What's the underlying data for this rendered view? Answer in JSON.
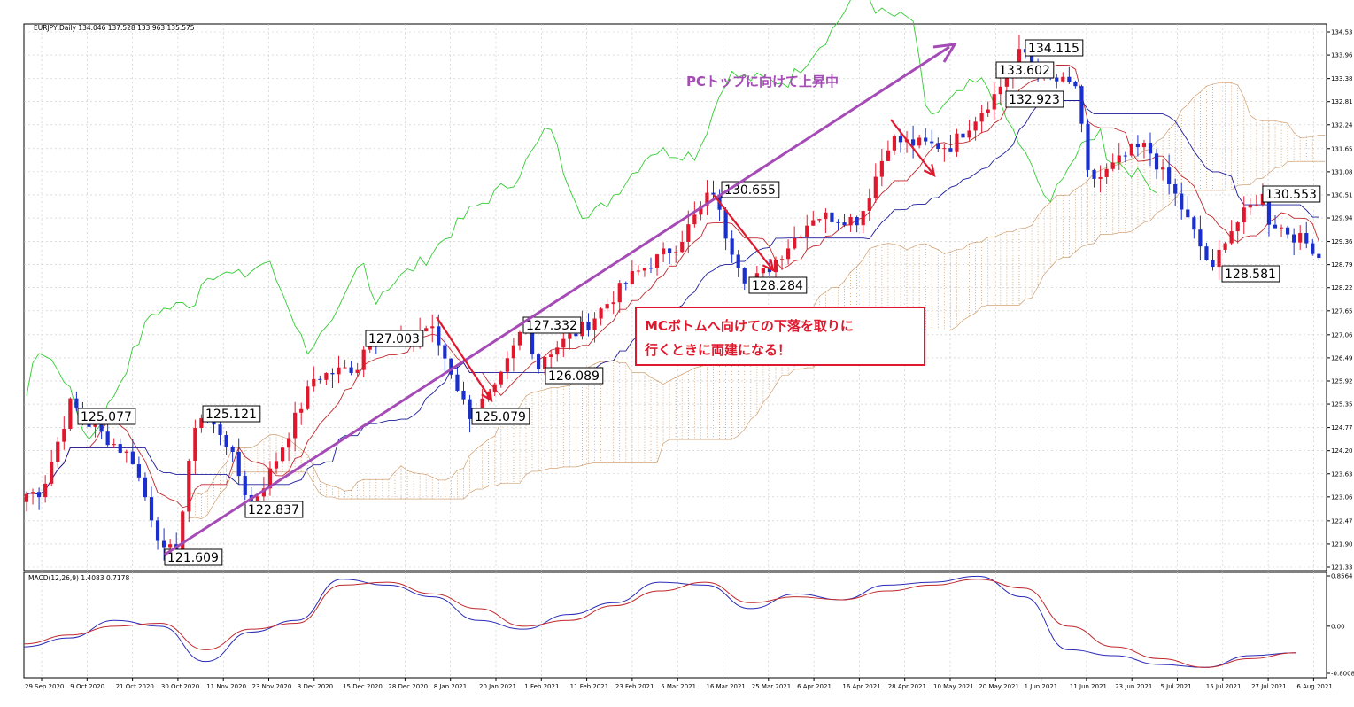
{
  "header": {
    "symbol_info": "EURJPY,Daily  134.046 137.528 133.963 135.575",
    "macd_info": "MACD(12,26,9) 1.4083 0.7178"
  },
  "colors": {
    "bull": "#e0182d",
    "bear": "#1a2fcc",
    "tenkan": "#c0282c",
    "kijun": "#1d1d9a",
    "chikou": "#33cc33",
    "kumo": "#c9915a",
    "macd_main": "#2a2ab8",
    "macd_signal": "#c0282c",
    "anno_purple": "#a54bb6",
    "anno_red": "#e0182d",
    "grid": "#c8c8c8"
  },
  "annotations": {
    "uptrend_text": "PCトップに向けて上昇中",
    "hedge_text_line1": "MCボトムへ向けての下落を取りに",
    "hedge_text_line2": "行くときに両建になる！"
  },
  "chart_data": [
    {
      "type": "candlestick",
      "title": "",
      "price_axis_ticks": [
        "134.53",
        "133.96",
        "133.38",
        "132.81",
        "132.24",
        "131.65",
        "131.08",
        "130.51",
        "129.94",
        "129.36",
        "128.79",
        "128.22",
        "127.65",
        "127.06",
        "126.49",
        "125.92",
        "125.35",
        "124.77",
        "124.20",
        "123.63",
        "123.06",
        "122.47",
        "121.90",
        "121.33"
      ],
      "ylim": [
        121.33,
        134.53
      ],
      "date_ticks": [
        "29 Sep 2020",
        "9 Oct 2020",
        "21 Oct 2020",
        "30 Oct 2020",
        "11 Nov 2020",
        "23 Nov 2020",
        "3 Dec 2020",
        "15 Dec 2020",
        "28 Dec 2020",
        "8 Jan 2021",
        "20 Jan 2021",
        "1 Feb 2021",
        "11 Feb 2021",
        "23 Feb 2021",
        "5 Mar 2021",
        "16 Mar 2021",
        "25 Mar 2021",
        "6 Apr 2021",
        "16 Apr 2021",
        "28 Apr 2021",
        "10 May 2021",
        "20 May 2021",
        "1 Jun 2021",
        "11 Jun 2021",
        "23 Jun 2021",
        "5 Jul 2021",
        "15 Jul 2021",
        "27 Jul 2021",
        "6 Aug 2021"
      ],
      "price_labels": [
        {
          "text": "125.077",
          "value": 125.077
        },
        {
          "text": "125.121",
          "value": 125.121
        },
        {
          "text": "121.609",
          "value": 121.609
        },
        {
          "text": "122.837",
          "value": 122.837
        },
        {
          "text": "127.003",
          "value": 127.003
        },
        {
          "text": "125.079",
          "value": 125.079
        },
        {
          "text": "127.332",
          "value": 127.332
        },
        {
          "text": "126.089",
          "value": 126.089
        },
        {
          "text": "130.655",
          "value": 130.655
        },
        {
          "text": "128.284",
          "value": 128.284
        },
        {
          "text": "134.115",
          "value": 134.115
        },
        {
          "text": "133.602",
          "value": 133.602
        },
        {
          "text": "132.923",
          "value": 132.923
        },
        {
          "text": "130.553",
          "value": 130.553
        },
        {
          "text": "128.581",
          "value": 128.581
        }
      ],
      "key_closes": [
        {
          "date": "29 Sep 2020",
          "value": 123.2
        },
        {
          "date": "9 Oct 2020",
          "value": 124.9
        },
        {
          "date": "21 Oct 2020",
          "value": 124.0
        },
        {
          "date": "30 Oct 2020",
          "value": 121.9
        },
        {
          "date": "11 Nov 2020",
          "value": 124.6
        },
        {
          "date": "23 Nov 2020",
          "value": 123.6
        },
        {
          "date": "3 Dec 2020",
          "value": 126.0
        },
        {
          "date": "15 Dec 2020",
          "value": 126.3
        },
        {
          "date": "28 Dec 2020",
          "value": 126.9
        },
        {
          "date": "8 Jan 2021",
          "value": 126.2
        },
        {
          "date": "20 Jan 2021",
          "value": 125.7
        },
        {
          "date": "1 Feb 2021",
          "value": 126.5
        },
        {
          "date": "11 Feb 2021",
          "value": 127.3
        },
        {
          "date": "23 Feb 2021",
          "value": 128.5
        },
        {
          "date": "5 Mar 2021",
          "value": 129.3
        },
        {
          "date": "16 Mar 2021",
          "value": 129.7
        },
        {
          "date": "25 Mar 2021",
          "value": 128.7
        },
        {
          "date": "6 Apr 2021",
          "value": 130.0
        },
        {
          "date": "16 Apr 2021",
          "value": 129.9
        },
        {
          "date": "28 Apr 2021",
          "value": 131.8
        },
        {
          "date": "10 May 2021",
          "value": 131.7
        },
        {
          "date": "20 May 2021",
          "value": 133.0
        },
        {
          "date": "1 Jun 2021",
          "value": 133.4
        },
        {
          "date": "11 Jun 2021",
          "value": 131.0
        },
        {
          "date": "23 Jun 2021",
          "value": 131.6
        },
        {
          "date": "5 Jul 2021",
          "value": 130.4
        },
        {
          "date": "15 Jul 2021",
          "value": 129.4
        },
        {
          "date": "27 Jul 2021",
          "value": 129.9
        },
        {
          "date": "6 Aug 2021",
          "value": 129.2
        }
      ]
    },
    {
      "type": "line",
      "title": "",
      "macd_axis_ticks": [
        "0.8564",
        "0.00",
        "-0.8008"
      ],
      "ylim": [
        -0.8008,
        0.8564
      ],
      "series": [
        {
          "name": "",
          "values": [
            -0.35,
            -0.2,
            0.1,
            0.0,
            -0.6,
            -0.1,
            0.1,
            0.8,
            0.7,
            0.5,
            0.1,
            -0.05,
            0.2,
            0.4,
            0.75,
            0.7,
            0.3,
            0.55,
            0.45,
            0.7,
            0.75,
            0.85,
            0.5,
            -0.4,
            -0.5,
            -0.65,
            -0.7,
            -0.5,
            -0.45
          ]
        },
        {
          "name": "",
          "values": [
            -0.3,
            -0.15,
            0.0,
            0.05,
            -0.4,
            -0.05,
            0.05,
            0.7,
            0.75,
            0.55,
            0.3,
            0.0,
            0.1,
            0.35,
            0.6,
            0.75,
            0.4,
            0.5,
            0.45,
            0.6,
            0.7,
            0.8,
            0.65,
            0.0,
            -0.35,
            -0.55,
            -0.7,
            -0.55,
            -0.45
          ]
        }
      ]
    }
  ]
}
